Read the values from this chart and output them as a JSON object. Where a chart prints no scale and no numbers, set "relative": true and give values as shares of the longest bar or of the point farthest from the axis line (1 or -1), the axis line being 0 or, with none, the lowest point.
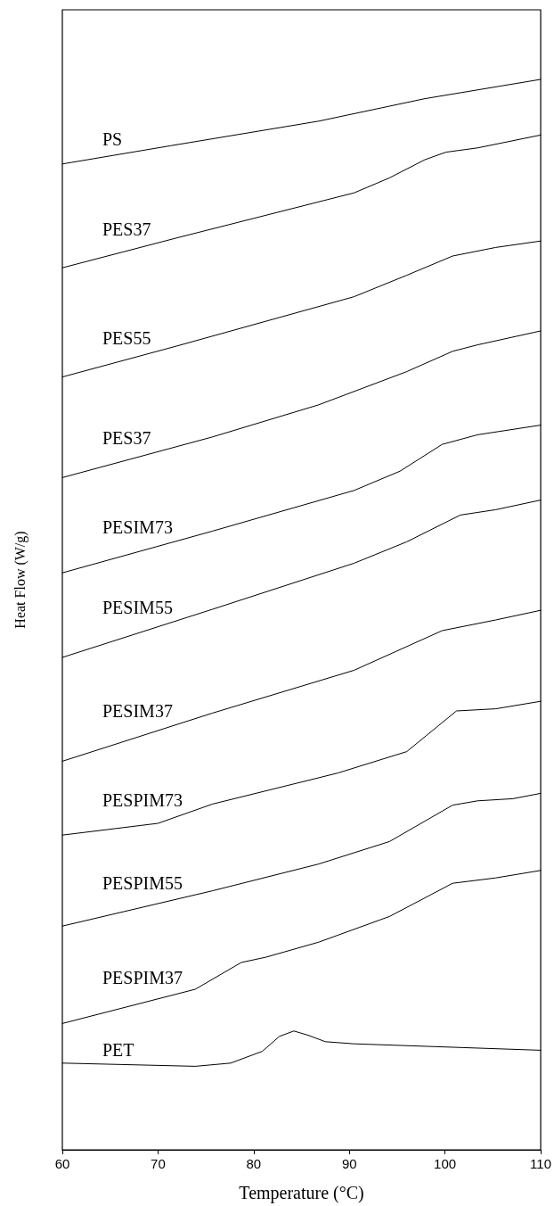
{
  "chart_data": {
    "type": "line",
    "relative": true,
    "xlabel": "Temperature (°C)",
    "ylabel": "Heat Flow (W/g)",
    "xlim": [
      60,
      110
    ],
    "xticks": [
      60,
      70,
      80,
      90,
      100,
      110
    ],
    "marker": "none",
    "line_style": "solid",
    "grid": false,
    "legend": false,
    "series": [
      {
        "name": "PS",
        "color": "#000000",
        "x": [
          60,
          71.3,
          86.8,
          97.9,
          110
        ],
        "values": [
          0.921,
          0.938,
          0.961,
          0.982,
          1.0
        ]
      },
      {
        "name": "PES37",
        "color": "#000000",
        "x": [
          60,
          72.0,
          90.5,
          94.2,
          97.9,
          100.1,
          103.4,
          110
        ],
        "values": [
          0.824,
          0.852,
          0.894,
          0.908,
          0.925,
          0.932,
          0.936,
          0.948
        ]
      },
      {
        "name": "PES55",
        "color": "#000000",
        "x": [
          60,
          72.0,
          90.5,
          96.0,
          100.8,
          105.3,
          110
        ],
        "values": [
          0.722,
          0.751,
          0.797,
          0.817,
          0.835,
          0.843,
          0.849
        ]
      },
      {
        "name": "PES37",
        "color": "#000000",
        "x": [
          60,
          75.7,
          86.8,
          96.0,
          100.8,
          103.4,
          110
        ],
        "values": [
          0.628,
          0.666,
          0.696,
          0.727,
          0.746,
          0.752,
          0.765
        ]
      },
      {
        "name": "PESIM73",
        "color": "#000000",
        "x": [
          60,
          75.7,
          90.5,
          95.3,
          99.7,
          103.4,
          110
        ],
        "values": [
          0.539,
          0.578,
          0.616,
          0.634,
          0.659,
          0.668,
          0.677
        ]
      },
      {
        "name": "PESIM55",
        "color": "#000000",
        "x": [
          60,
          75.7,
          90.5,
          96.0,
          101.6,
          105.3,
          110
        ],
        "values": [
          0.46,
          0.505,
          0.548,
          0.568,
          0.593,
          0.598,
          0.607
        ]
      },
      {
        "name": "PESIM37",
        "color": "#000000",
        "x": [
          60,
          75.7,
          90.5,
          99.7,
          105.3,
          110
        ],
        "values": [
          0.363,
          0.408,
          0.448,
          0.485,
          0.495,
          0.504
        ]
      },
      {
        "name": "PESPIM73",
        "color": "#000000",
        "x": [
          60,
          70,
          75.7,
          88.8,
          96.0,
          101.2,
          105.3,
          110
        ],
        "values": [
          0.294,
          0.305,
          0.323,
          0.352,
          0.372,
          0.41,
          0.412,
          0.419
        ]
      },
      {
        "name": "PESPIM55",
        "color": "#000000",
        "x": [
          60,
          75.7,
          86.8,
          94.2,
          100.8,
          103.4,
          107.1,
          110
        ],
        "values": [
          0.209,
          0.242,
          0.267,
          0.288,
          0.322,
          0.326,
          0.328,
          0.333
        ]
      },
      {
        "name": "PESPIM37",
        "color": "#000000",
        "x": [
          60,
          73.9,
          78.7,
          81.3,
          86.8,
          94.2,
          100.8,
          105.3,
          110
        ],
        "values": [
          0.118,
          0.15,
          0.175,
          0.18,
          0.194,
          0.218,
          0.249,
          0.254,
          0.261
        ]
      },
      {
        "name": "PET",
        "color": "#000000",
        "x": [
          60,
          73.9,
          77.6,
          80.9,
          82.7,
          84.2,
          85.7,
          87.5,
          90.5,
          110
        ],
        "values": [
          0.081,
          0.078,
          0.081,
          0.092,
          0.106,
          0.111,
          0.107,
          0.101,
          0.099,
          0.093
        ]
      }
    ]
  }
}
